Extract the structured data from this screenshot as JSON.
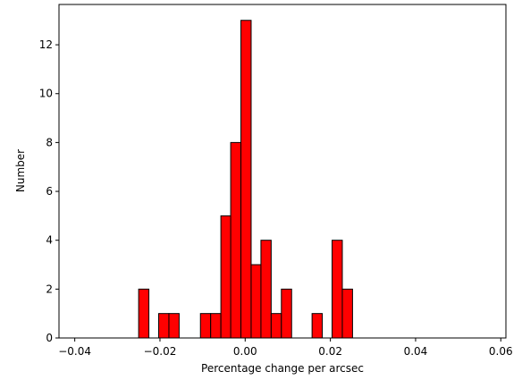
{
  "chart_data": {
    "type": "bar",
    "title": "",
    "xlabel": "Percentage change per arcsec",
    "ylabel": "Number",
    "xlim": [
      -0.0437,
      0.0612
    ],
    "ylim": [
      0,
      13.65
    ],
    "grid": false,
    "bar_color": "#ff0000",
    "edge_color": "#000000",
    "bin_width": 0.0024,
    "x_ticks": [
      -0.04,
      -0.02,
      0.0,
      0.02,
      0.04,
      0.06
    ],
    "x_tick_labels": [
      "−0.04",
      "−0.02",
      "0.00",
      "0.02",
      "0.04",
      "0.06"
    ],
    "y_ticks": [
      0,
      2,
      4,
      6,
      8,
      10,
      12
    ],
    "y_tick_labels": [
      "0",
      "2",
      "4",
      "6",
      "8",
      "10",
      "12"
    ],
    "bins": [
      {
        "x": -0.025,
        "count": 2
      },
      {
        "x": -0.0203,
        "count": 1
      },
      {
        "x": -0.0179,
        "count": 1
      },
      {
        "x": -0.0105,
        "count": 1
      },
      {
        "x": -0.0081,
        "count": 1
      },
      {
        "x": -0.0057,
        "count": 5
      },
      {
        "x": -0.0034,
        "count": 8
      },
      {
        "x": -0.001,
        "count": 13
      },
      {
        "x": 0.0014,
        "count": 3
      },
      {
        "x": 0.0037,
        "count": 4
      },
      {
        "x": 0.0061,
        "count": 1
      },
      {
        "x": 0.0085,
        "count": 2
      },
      {
        "x": 0.0157,
        "count": 1
      },
      {
        "x": 0.0204,
        "count": 4
      },
      {
        "x": 0.0228,
        "count": 2
      },
      {
        "x": 0.0252,
        "count": 0
      },
      {
        "x": 0.0276,
        "count": 0
      },
      {
        "x": 0.03,
        "count": 0
      },
      {
        "x": 0.0324,
        "count": 0
      },
      {
        "x": 0.0348,
        "count": 0
      },
      {
        "x": 0.0372,
        "count": 0
      },
      {
        "x": 0.0396,
        "count": 0
      },
      {
        "x": 0.042,
        "count": 0
      },
      {
        "x": 0.0444,
        "count": 0
      },
      {
        "x": 0.0468,
        "count": 0
      },
      {
        "x": 0.0492,
        "count": 0
      },
      {
        "x": 0.0516,
        "count": 0
      },
      {
        "x": 0.054,
        "count": 0
      },
      {
        "x": 0.0564,
        "count": 0
      },
      {
        "x": -0.0394,
        "count": 0
      },
      {
        "x": -0.037,
        "count": 0
      },
      {
        "x": -0.0346,
        "count": 0
      },
      {
        "x": -0.0322,
        "count": 0
      },
      {
        "x": -0.0298,
        "count": 0
      },
      {
        "x": -0.0274,
        "count": 0
      }
    ]
  }
}
